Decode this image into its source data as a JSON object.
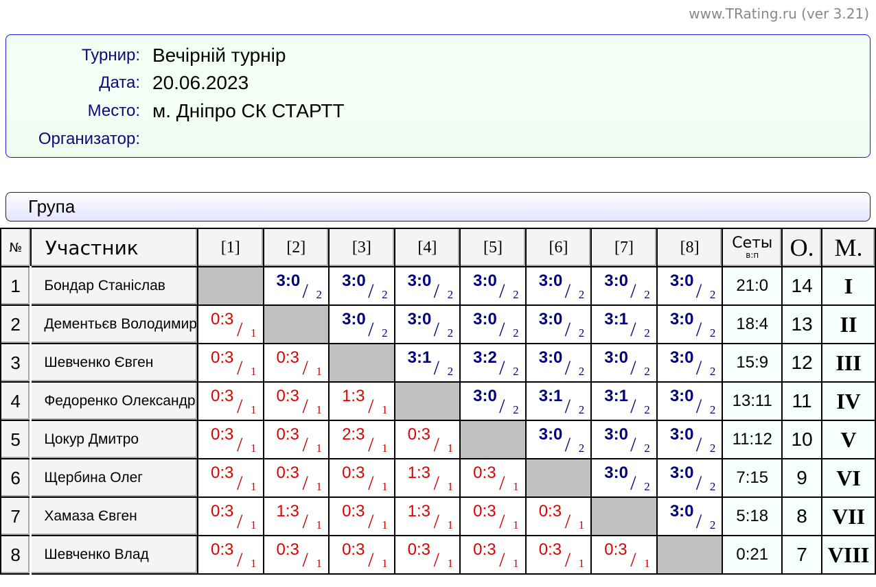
{
  "site": "www.TRating.ru (ver 3.21)",
  "info": {
    "tournament_label": "Турнир:",
    "tournament": "Вечірній турнір",
    "date_label": "Дата:",
    "date": "20.06.2023",
    "place_label": "Место:",
    "place": "м. Дніпро СК СТАРТТ",
    "organizer_label": "Организатор:",
    "organizer": ""
  },
  "group_title": "Група",
  "headers": {
    "num": "№",
    "player": "Участник",
    "cols": [
      "[1]",
      "[2]",
      "[3]",
      "[4]",
      "[5]",
      "[6]",
      "[7]",
      "[8]"
    ],
    "sets": "Сеты",
    "sets_sub": "в:п",
    "points": "О.",
    "place": "М."
  },
  "colors": {
    "win": "#00007a",
    "loss": "#e00000"
  },
  "rows": [
    {
      "n": "1",
      "name": "Бондар Станіслав",
      "res": [
        null,
        "3:0",
        "3:0",
        "3:0",
        "3:0",
        "3:0",
        "3:0",
        "3:0"
      ],
      "sets": "21:0",
      "points": "14",
      "place": "I"
    },
    {
      "n": "2",
      "name": "Дементьєв Володимир",
      "res": [
        "0:3",
        null,
        "3:0",
        "3:0",
        "3:0",
        "3:0",
        "3:1",
        "3:0"
      ],
      "sets": "18:4",
      "points": "13",
      "place": "II"
    },
    {
      "n": "3",
      "name": "Шевченко Євген",
      "res": [
        "0:3",
        "0:3",
        null,
        "3:1",
        "3:2",
        "3:0",
        "3:0",
        "3:0"
      ],
      "sets": "15:9",
      "points": "12",
      "place": "III"
    },
    {
      "n": "4",
      "name": "Федоренко Олександр",
      "res": [
        "0:3",
        "0:3",
        "1:3",
        null,
        "3:0",
        "3:1",
        "3:1",
        "3:0"
      ],
      "sets": "13:11",
      "points": "11",
      "place": "IV"
    },
    {
      "n": "5",
      "name": "Цокур Дмитро",
      "res": [
        "0:3",
        "0:3",
        "2:3",
        "0:3",
        null,
        "3:0",
        "3:0",
        "3:0"
      ],
      "sets": "11:12",
      "points": "10",
      "place": "V"
    },
    {
      "n": "6",
      "name": "Щербина Олег",
      "res": [
        "0:3",
        "0:3",
        "0:3",
        "1:3",
        "0:3",
        null,
        "3:0",
        "3:0"
      ],
      "sets": "7:15",
      "points": "9",
      "place": "VI"
    },
    {
      "n": "7",
      "name": "Хамаза Євген",
      "res": [
        "0:3",
        "1:3",
        "0:3",
        "1:3",
        "0:3",
        "0:3",
        null,
        "3:0"
      ],
      "sets": "5:18",
      "points": "8",
      "place": "VII"
    },
    {
      "n": "8",
      "name": "Шевченко Влад",
      "res": [
        "0:3",
        "0:3",
        "0:3",
        "0:3",
        "0:3",
        "0:3",
        "0:3",
        null
      ],
      "sets": "0:21",
      "points": "7",
      "place": "VIII"
    }
  ]
}
